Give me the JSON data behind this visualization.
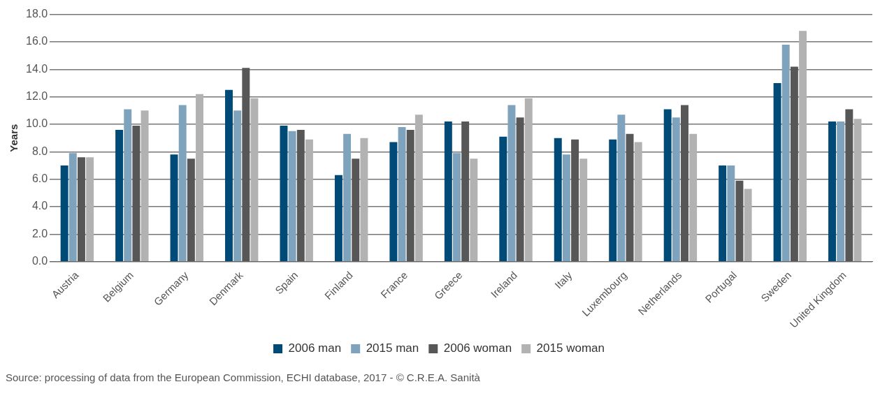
{
  "chart_data": {
    "type": "bar",
    "ylabel": "Years",
    "categories": [
      "Austria",
      "Belgium",
      "Germany",
      "Denmark",
      "Spain",
      "Finland",
      "France",
      "Greece",
      "Ireland",
      "Italy",
      "Luxembourg",
      "Netherlands",
      "Portugal",
      "Sweden",
      "United Kingdom"
    ],
    "series": [
      {
        "name": "2006 man",
        "color": "#004a78",
        "values": [
          7.0,
          9.6,
          7.8,
          12.5,
          9.9,
          6.3,
          8.7,
          10.2,
          9.1,
          9.0,
          8.9,
          11.1,
          7.0,
          13.0,
          10.2
        ]
      },
      {
        "name": "2015 man",
        "color": "#7fa3bd",
        "values": [
          7.9,
          11.1,
          11.4,
          11.0,
          9.5,
          9.3,
          9.8,
          7.9,
          11.4,
          7.8,
          10.7,
          10.5,
          7.0,
          15.8,
          10.2
        ]
      },
      {
        "name": "2006 woman",
        "color": "#575757",
        "values": [
          7.6,
          9.9,
          7.5,
          14.1,
          9.6,
          7.5,
          9.6,
          10.2,
          10.5,
          8.9,
          9.3,
          11.4,
          5.9,
          14.2,
          11.1
        ]
      },
      {
        "name": "2015 woman",
        "color": "#b2b2b2",
        "values": [
          7.6,
          11.0,
          12.2,
          11.9,
          8.9,
          9.0,
          10.7,
          7.5,
          11.9,
          7.5,
          8.7,
          9.3,
          5.3,
          16.8,
          10.4
        ]
      }
    ],
    "ylim": [
      0,
      18
    ],
    "yticks": [
      {
        "value": 0,
        "label": "0.0"
      },
      {
        "value": 2,
        "label": "2.0"
      },
      {
        "value": 4,
        "label": "4.0"
      },
      {
        "value": 6,
        "label": "6.0"
      },
      {
        "value": 8,
        "label": "8.0"
      },
      {
        "value": 10,
        "label": "10.0"
      },
      {
        "value": 12,
        "label": "12.0"
      },
      {
        "value": 14,
        "label": "14.0"
      },
      {
        "value": 16,
        "label": "16.0"
      },
      {
        "value": 18,
        "label": "18.0"
      }
    ],
    "grid": "y",
    "legend": "bottom",
    "annotations": [
      "Source: processing of data from the European Commission, ECHI database, 2017 - © C.R.E.A. Sanità"
    ]
  }
}
